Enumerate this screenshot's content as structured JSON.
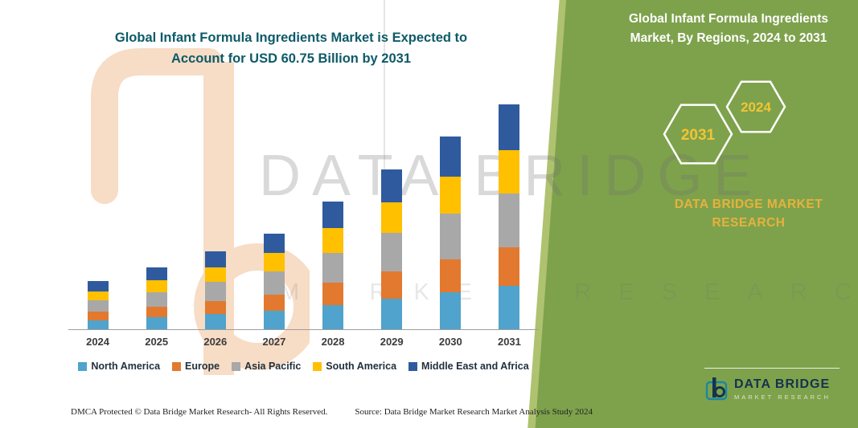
{
  "left_title": "Global Infant Formula Ingredients Market is Expected to Account for USD 60.75 Billion by 2031",
  "right_panel": {
    "title": "Global Infant Formula Ingredients Market, By Regions, 2024 to 2031",
    "hexagons": [
      "2031",
      "2024"
    ],
    "brand_line1": "DATA BRIDGE MARKET",
    "brand_line2": "RESEARCH",
    "accent_green": "#7ea24c",
    "accent_gold": "#e6b23c",
    "hex_year_color": "#f2c434"
  },
  "watermark": {
    "line1": "DATA BRIDGE",
    "line2": "MARKET RESEARCH"
  },
  "logo": {
    "name": "DATA BRIDGE",
    "subtitle": "MARKET RESEARCH"
  },
  "footer": {
    "dmca": "DMCA Protected © Data Bridge Market Research-  All Rights Reserved.",
    "source": "Source: Data Bridge Market Research  Market Analysis Study 2024"
  },
  "chart_data": {
    "type": "bar",
    "stacked": true,
    "title": "Global Infant Formula Ingredients Market is Expected to Account for USD 60.75 Billion by 2031",
    "xlabel": "",
    "ylabel": "",
    "ylim": [
      0,
      65
    ],
    "grid": false,
    "legend_position": "bottom",
    "categories": [
      "2024",
      "2025",
      "2026",
      "2027",
      "2028",
      "2029",
      "2030",
      "2031"
    ],
    "series": [
      {
        "name": "North America",
        "color": "#4fa3cc",
        "values": [
          2.5,
          3.2,
          4.1,
          5.0,
          6.6,
          8.3,
          10.0,
          11.7
        ]
      },
      {
        "name": "Europe",
        "color": "#e2792e",
        "values": [
          2.2,
          2.9,
          3.6,
          4.4,
          5.9,
          7.4,
          8.9,
          10.5
        ]
      },
      {
        "name": "Asia Pacific",
        "color": "#a8a8a8",
        "values": [
          3.1,
          3.9,
          5.0,
          6.1,
          8.2,
          10.2,
          12.3,
          14.4
        ]
      },
      {
        "name": "South America",
        "color": "#ffc000",
        "values": [
          2.5,
          3.2,
          4.1,
          5.0,
          6.6,
          8.3,
          10.0,
          11.7
        ]
      },
      {
        "name": "Middle East and Africa",
        "color": "#2f5b9e",
        "values": [
          2.7,
          3.4,
          4.3,
          5.2,
          7.1,
          9.0,
          10.7,
          12.45
        ]
      }
    ],
    "totals_estimated": [
      13.0,
      16.6,
      21.1,
      25.7,
      34.4,
      43.2,
      51.9,
      60.75
    ]
  }
}
